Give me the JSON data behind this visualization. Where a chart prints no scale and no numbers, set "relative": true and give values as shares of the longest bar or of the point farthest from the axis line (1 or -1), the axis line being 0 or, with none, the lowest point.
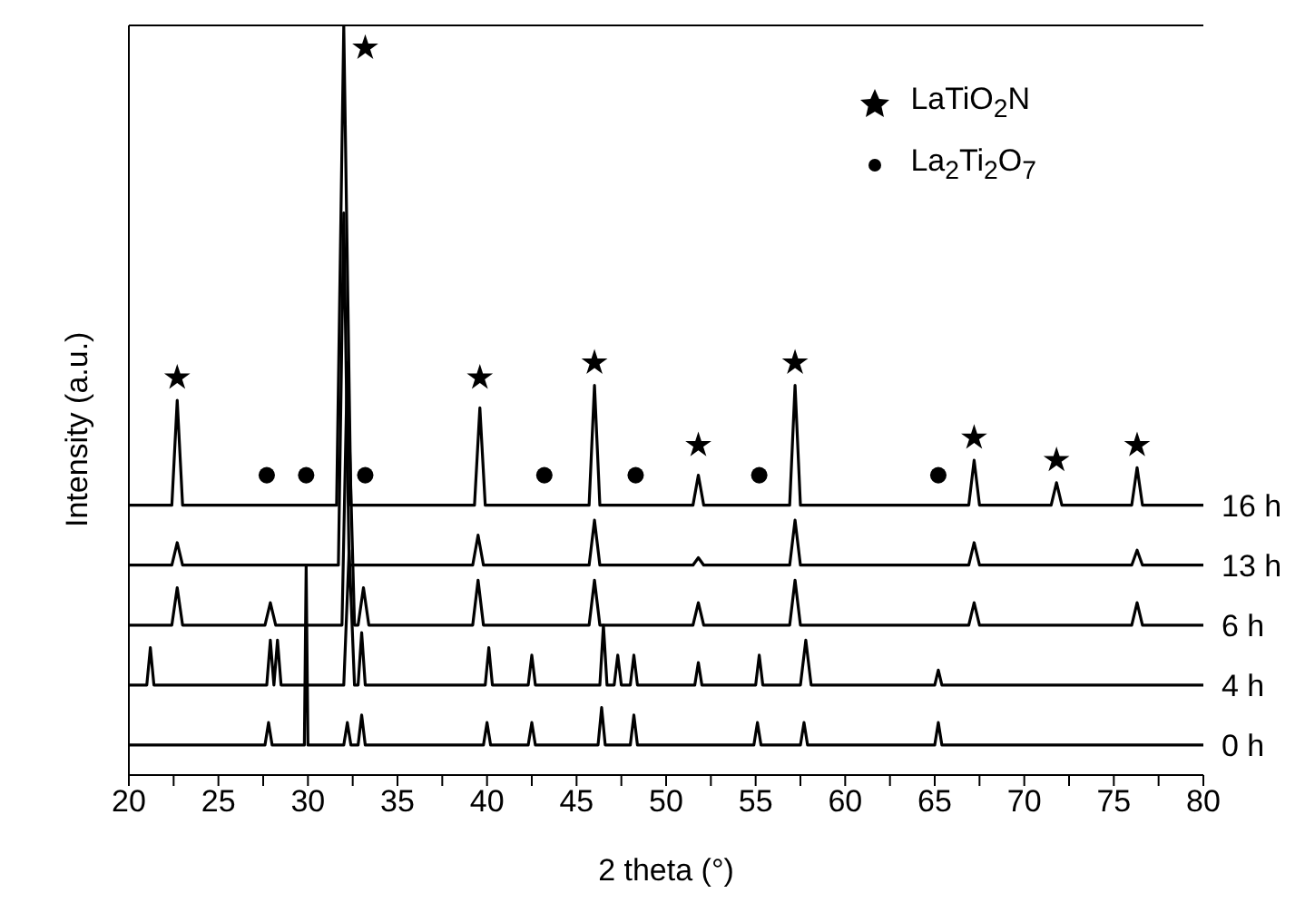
{
  "chart_data": {
    "type": "line",
    "relative": true,
    "xlabel": "2 theta (°)",
    "ylabel": "Intensity (a.u.)",
    "xlim": [
      20,
      80
    ],
    "xticks": [
      20,
      {
        "value": 22.5,
        "label": null
      },
      25,
      {
        "value": 27.5,
        "label": null
      },
      30,
      {
        "value": 32.5,
        "label": null
      },
      35,
      {
        "value": 37.5,
        "label": null
      },
      40,
      {
        "value": 42.5,
        "label": null
      },
      45,
      {
        "value": 47.5,
        "label": null
      },
      50,
      {
        "value": 52.5,
        "label": null
      },
      55,
      {
        "value": 57.5,
        "label": null
      },
      60,
      {
        "value": 62.5,
        "label": null
      },
      65,
      {
        "value": 67.5,
        "label": null
      },
      70,
      {
        "value": 72.5,
        "label": null
      },
      75,
      {
        "value": 77.5,
        "label": null
      },
      80
    ],
    "tick_labels": "x",
    "grid": false,
    "legend": "top right",
    "marker": "none",
    "line_style": "solid",
    "series": [
      {
        "name": "16 h",
        "color": "#000000",
        "x": [
          20,
          22.4,
          22.7,
          23.0,
          31.6,
          32.0,
          32.4,
          39.3,
          39.6,
          39.9,
          45.7,
          46.0,
          46.3,
          51.5,
          51.8,
          52.1,
          56.9,
          57.2,
          57.5,
          66.9,
          67.2,
          67.5,
          71.5,
          71.8,
          72.1,
          76.0,
          76.3,
          76.6,
          80
        ],
        "values": [
          0.36,
          0.36,
          0.5,
          0.36,
          0.36,
          1,
          0.36,
          0.36,
          0.49,
          0.36,
          0.36,
          0.52,
          0.36,
          0.36,
          0.4,
          0.36,
          0.36,
          0.52,
          0.36,
          0.36,
          0.42,
          0.36,
          0.36,
          0.39,
          0.36,
          0.36,
          0.41,
          0.36,
          0.36
        ]
      },
      {
        "name": "13 h",
        "color": "#000000",
        "x": [
          20,
          22.4,
          22.7,
          23.0,
          31.7,
          32.0,
          32.3,
          39.2,
          39.5,
          39.8,
          45.7,
          46.0,
          46.3,
          51.5,
          51.8,
          52.1,
          56.9,
          57.2,
          57.5,
          66.9,
          67.2,
          67.5,
          76.0,
          76.3,
          76.6,
          80
        ],
        "values": [
          0.28,
          0.28,
          0.31,
          0.28,
          0.28,
          0.75,
          0.28,
          0.28,
          0.32,
          0.28,
          0.28,
          0.34,
          0.28,
          0.28,
          0.29,
          0.28,
          0.28,
          0.34,
          0.28,
          0.28,
          0.31,
          0.28,
          0.28,
          0.3,
          0.28,
          0.28
        ]
      },
      {
        "name": "6 h",
        "color": "#000000",
        "x": [
          20,
          22.4,
          22.7,
          23.0,
          27.6,
          27.9,
          28.2,
          31.9,
          32.2,
          32.6,
          32.8,
          33.1,
          33.4,
          39.2,
          39.5,
          39.8,
          45.7,
          46.0,
          46.3,
          51.5,
          51.8,
          52.1,
          56.9,
          57.2,
          57.5,
          66.9,
          67.2,
          67.5,
          76.0,
          76.3,
          76.6,
          80
        ],
        "values": [
          0.2,
          0.2,
          0.25,
          0.2,
          0.2,
          0.23,
          0.2,
          0.2,
          0.55,
          0.2,
          0.2,
          0.25,
          0.2,
          0.2,
          0.26,
          0.2,
          0.2,
          0.26,
          0.2,
          0.2,
          0.23,
          0.2,
          0.2,
          0.26,
          0.2,
          0.2,
          0.23,
          0.2,
          0.2,
          0.23,
          0.2,
          0.2
        ]
      },
      {
        "name": "4 h",
        "color": "#000000",
        "x": [
          20,
          21.0,
          21.2,
          21.4,
          27.7,
          27.9,
          28.1,
          28.3,
          28.5,
          32.0,
          32.3,
          32.6,
          32.8,
          33.0,
          33.2,
          39.9,
          40.1,
          40.3,
          42.3,
          42.5,
          42.7,
          46.3,
          46.5,
          46.7,
          47.1,
          47.3,
          47.5,
          48.0,
          48.2,
          48.4,
          51.6,
          51.8,
          52.0,
          55.0,
          55.2,
          55.4,
          57.5,
          57.8,
          58.1,
          65.0,
          65.2,
          65.4,
          80
        ],
        "values": [
          0.12,
          0.12,
          0.17,
          0.12,
          0.12,
          0.18,
          0.12,
          0.18,
          0.12,
          0.12,
          0.3,
          0.12,
          0.12,
          0.19,
          0.12,
          0.12,
          0.17,
          0.12,
          0.12,
          0.16,
          0.12,
          0.12,
          0.2,
          0.12,
          0.12,
          0.16,
          0.12,
          0.12,
          0.16,
          0.12,
          0.12,
          0.15,
          0.12,
          0.12,
          0.16,
          0.12,
          0.12,
          0.18,
          0.12,
          0.12,
          0.14,
          0.12,
          0.12
        ]
      },
      {
        "name": "0 h",
        "color": "#000000",
        "x": [
          20,
          27.6,
          27.8,
          28.0,
          29.8,
          29.9,
          30.0,
          32.0,
          32.2,
          32.4,
          32.8,
          33.0,
          33.2,
          39.8,
          40.0,
          40.2,
          42.3,
          42.5,
          42.7,
          46.2,
          46.4,
          46.6,
          48.0,
          48.2,
          48.4,
          54.9,
          55.1,
          55.3,
          57.5,
          57.7,
          57.9,
          65.0,
          65.2,
          65.4,
          80
        ],
        "values": [
          0.04,
          0.04,
          0.07,
          0.04,
          0.04,
          0.28,
          0.04,
          0.04,
          0.07,
          0.04,
          0.04,
          0.08,
          0.04,
          0.04,
          0.07,
          0.04,
          0.04,
          0.07,
          0.04,
          0.04,
          0.09,
          0.04,
          0.04,
          0.08,
          0.04,
          0.04,
          0.07,
          0.04,
          0.04,
          0.07,
          0.04,
          0.04,
          0.07,
          0.04,
          0.04
        ]
      },
      {
        "name": "LaTiO$_{2}$N",
        "type": "scatter",
        "marker": "star",
        "color": "#000000",
        "x": [
          22.7,
          33.2,
          39.6,
          46.0,
          51.8,
          57.2,
          67.2,
          71.8,
          76.3
        ],
        "values": [
          0.53,
          0.97,
          0.53,
          0.55,
          0.44,
          0.55,
          0.45,
          0.42,
          0.44
        ]
      },
      {
        "name": "La$_{2}$Ti$_{2}$O$_{7}$",
        "type": "scatter",
        "marker": "circle",
        "color": "#000000",
        "x": [
          27.7,
          29.9,
          33.2,
          43.2,
          48.3,
          55.2,
          65.2
        ],
        "values": [
          0.4,
          0.4,
          0.4,
          0.4,
          0.4,
          0.4,
          0.4
        ]
      }
    ]
  }
}
